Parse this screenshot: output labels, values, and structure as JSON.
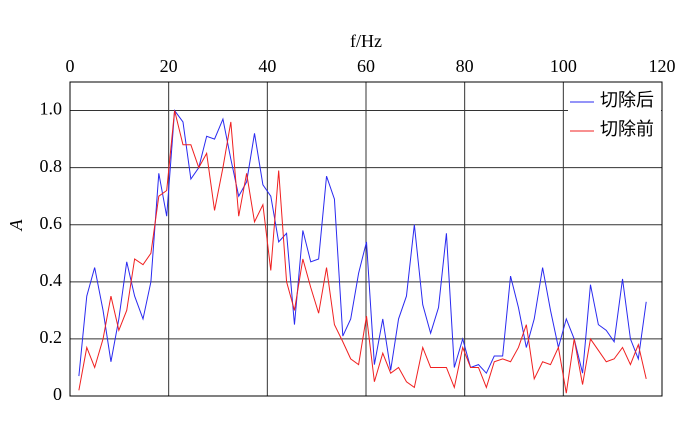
{
  "chart_data": {
    "type": "line",
    "xlabel": "f/Hz",
    "ylabel": "A",
    "xlim": [
      0,
      120
    ],
    "xticks": [
      0,
      20,
      40,
      60,
      80,
      100,
      120
    ],
    "ylim": [
      0,
      1.1
    ],
    "yticks": [
      0,
      0.2,
      0.4,
      0.6,
      0.8,
      {
        "value": 1.0,
        "label": "1.0"
      }
    ],
    "grid": true,
    "legend": "upper right",
    "x": [
      1.8,
      3.4,
      5.0,
      6.7,
      8.3,
      9.9,
      11.5,
      13.1,
      14.8,
      16.4,
      18.0,
      19.6,
      21.2,
      22.9,
      24.5,
      26.1,
      27.7,
      29.3,
      31.0,
      32.6,
      34.2,
      35.8,
      37.4,
      39.1,
      40.7,
      42.3,
      43.9,
      45.5,
      47.2,
      48.8,
      50.4,
      52.0,
      53.6,
      55.3,
      56.9,
      58.5,
      60.1,
      61.7,
      63.4,
      65.0,
      66.6,
      68.2,
      69.8,
      71.5,
      73.1,
      74.7,
      76.3,
      77.9,
      79.6,
      81.2,
      82.8,
      84.4,
      86.0,
      87.7,
      89.3,
      90.9,
      92.5,
      94.1,
      95.8,
      97.4,
      99.0,
      100.6,
      102.2,
      103.9,
      105.5,
      107.1,
      108.7,
      110.3,
      112.0,
      113.6,
      115.2,
      116.8
    ],
    "series": [
      {
        "name": "切除后",
        "color": "#2a2af0",
        "values": [
          0.07,
          0.35,
          0.45,
          0.3,
          0.12,
          0.27,
          0.47,
          0.35,
          0.27,
          0.4,
          0.78,
          0.63,
          1.0,
          0.96,
          0.76,
          0.8,
          0.91,
          0.9,
          0.97,
          0.83,
          0.7,
          0.75,
          0.92,
          0.74,
          0.7,
          0.54,
          0.57,
          0.25,
          0.58,
          0.47,
          0.48,
          0.77,
          0.69,
          0.21,
          0.27,
          0.43,
          0.54,
          0.11,
          0.27,
          0.09,
          0.27,
          0.35,
          0.6,
          0.32,
          0.22,
          0.31,
          0.57,
          0.1,
          0.2,
          0.1,
          0.11,
          0.08,
          0.14,
          0.14,
          0.42,
          0.31,
          0.17,
          0.27,
          0.45,
          0.3,
          0.17,
          0.27,
          0.2,
          0.08,
          0.39,
          0.25,
          0.23,
          0.19,
          0.41,
          0.2,
          0.13,
          0.33
        ]
      },
      {
        "name": "切除前",
        "color": "#f02020",
        "values": [
          0.02,
          0.17,
          0.1,
          0.2,
          0.35,
          0.23,
          0.3,
          0.48,
          0.46,
          0.5,
          0.7,
          0.72,
          1.0,
          0.88,
          0.88,
          0.8,
          0.85,
          0.65,
          0.8,
          0.96,
          0.63,
          0.78,
          0.61,
          0.67,
          0.44,
          0.79,
          0.4,
          0.3,
          0.48,
          0.38,
          0.29,
          0.45,
          0.25,
          0.19,
          0.13,
          0.11,
          0.28,
          0.05,
          0.15,
          0.08,
          0.1,
          0.05,
          0.03,
          0.17,
          0.1,
          0.1,
          0.1,
          0.03,
          0.17,
          0.1,
          0.1,
          0.03,
          0.12,
          0.13,
          0.12,
          0.17,
          0.25,
          0.06,
          0.12,
          0.11,
          0.17,
          0.01,
          0.2,
          0.04,
          0.2,
          0.16,
          0.12,
          0.13,
          0.17,
          0.11,
          0.18,
          0.06
        ]
      }
    ]
  }
}
